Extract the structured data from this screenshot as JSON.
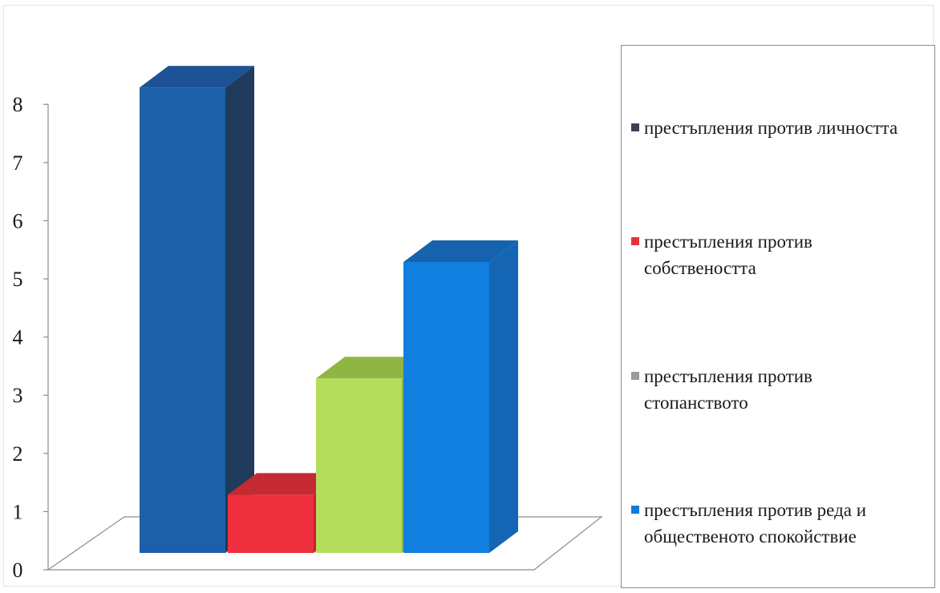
{
  "chart_data": {
    "type": "bar",
    "variant": "3d-column",
    "categories": [
      "престъпления против личността",
      "престъпления против собствеността",
      "престъпления против стопанството",
      "престъпления против реда и обществеността спокойствие"
    ],
    "series": [
      {
        "name": "престъпления против личността",
        "value": 8,
        "color": "#1b60a8",
        "side": "#1f3a5a",
        "top": "#1d5295"
      },
      {
        "name": "престъпления против собствеността",
        "value": 1,
        "color": "#ee2f3d",
        "side": "#c7222e",
        "top": "#c52a33"
      },
      {
        "name": "престъпления против стопанството",
        "value": 3,
        "color": "#b5dc5a",
        "side": "#8fb84a",
        "top": "#8fb542"
      },
      {
        "name": "престъпления против реда и обществеността спокойствие",
        "value": 5,
        "color": "#117fe0",
        "side": "#1466b5",
        "top": "#1562ad"
      }
    ],
    "y_ticks": [
      "0",
      "1",
      "2",
      "3",
      "4",
      "5",
      "6",
      "7",
      "8"
    ],
    "ylim": [
      0,
      8
    ],
    "title": "",
    "xlabel": "",
    "ylabel": "",
    "legend_position": "right"
  },
  "legend": {
    "items": [
      {
        "label": "престъпления против личността",
        "color": "#3a4150"
      },
      {
        "label": "престъпления против\nсобствеността",
        "color": "#e8303c"
      },
      {
        "label": "престъпления против\nстопанството",
        "color": "#9a9a9a"
      },
      {
        "label": "престъпления против реда и\nобщественото спокойствие",
        "color": "#1478d8"
      }
    ]
  }
}
